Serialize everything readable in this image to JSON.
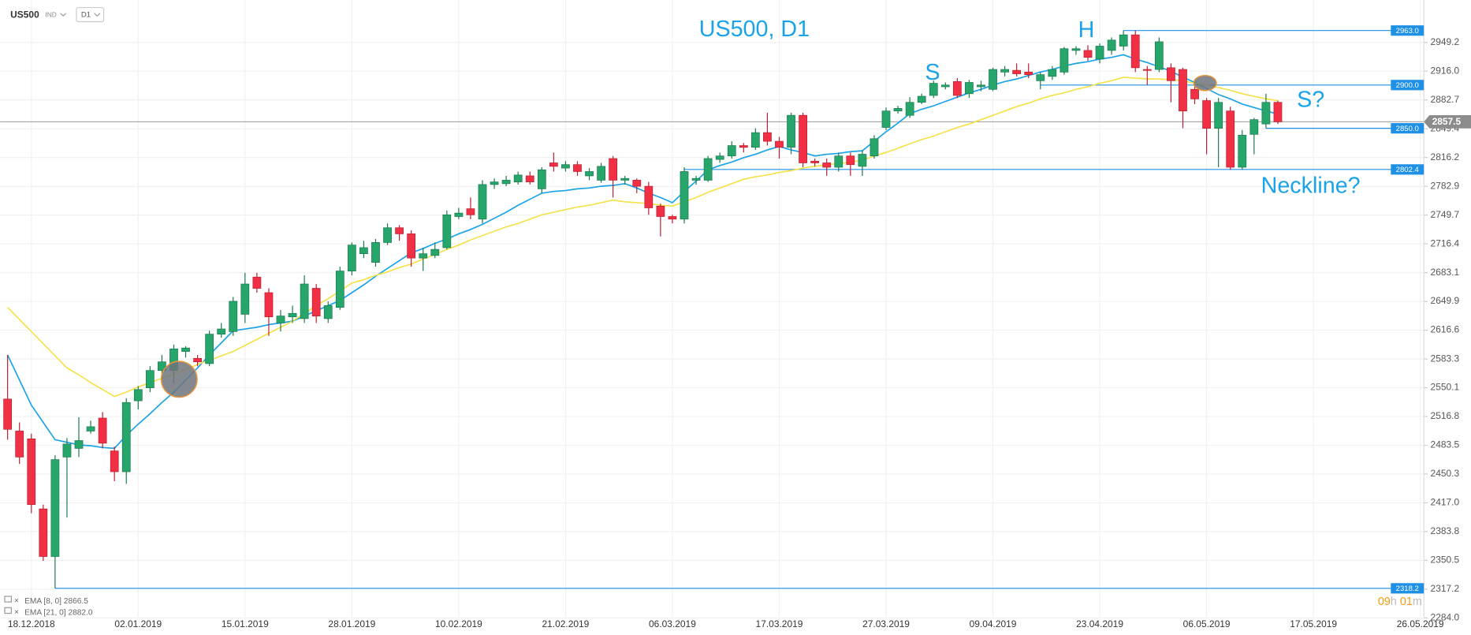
{
  "toolbar": {
    "symbol": "US500",
    "kind": "IND",
    "interval": "D1"
  },
  "chart_data": {
    "type": "candlestick",
    "title": "US500, D1",
    "annotations": [
      "H",
      "S",
      "S?",
      "Neckline?"
    ],
    "up_color": "#26a66b",
    "down_color": "#f23045",
    "open": [
      2537,
      2500,
      2491,
      2410,
      2355,
      2470,
      2480,
      2500,
      2515,
      2477,
      2453,
      2535,
      2550,
      2570,
      2570,
      2592,
      2584,
      2578,
      2612,
      2615,
      2635,
      2678,
      2660,
      2625,
      2632,
      2630,
      2665,
      2630,
      2643,
      2685,
      2705,
      2695,
      2718,
      2735,
      2728,
      2700,
      2703,
      2712,
      2748,
      2757,
      2745,
      2785,
      2786,
      2788,
      2795,
      2780,
      2810,
      2804,
      2808,
      2795,
      2790,
      2815,
      2790,
      2790,
      2783,
      2760,
      2748,
      2745,
      2790,
      2790,
      2814,
      2818,
      2830,
      2828,
      2845,
      2835,
      2828,
      2865,
      2812,
      2810,
      2805,
      2818,
      2806,
      2818,
      2851,
      2870,
      2865,
      2880,
      2888,
      2898,
      2904,
      2890,
      2898,
      2895,
      2915,
      2917,
      2915,
      2905,
      2910,
      2915,
      2940,
      2940,
      2930,
      2940,
      2945,
      2958,
      2918,
      2918,
      2920,
      2918,
      2895,
      2882,
      2850,
      2870,
      2805,
      2843,
      2855,
      2880
    ],
    "high": [
      2588,
      2510,
      2497,
      2415,
      2472,
      2492,
      2516,
      2512,
      2522,
      2482,
      2538,
      2552,
      2575,
      2588,
      2600,
      2598,
      2588,
      2616,
      2625,
      2655,
      2683,
      2683,
      2665,
      2640,
      2645,
      2680,
      2670,
      2650,
      2690,
      2718,
      2720,
      2722,
      2740,
      2738,
      2732,
      2712,
      2718,
      2755,
      2758,
      2770,
      2790,
      2792,
      2795,
      2800,
      2800,
      2805,
      2822,
      2812,
      2812,
      2804,
      2810,
      2818,
      2795,
      2792,
      2788,
      2763,
      2750,
      2805,
      2795,
      2818,
      2822,
      2835,
      2833,
      2850,
      2868,
      2840,
      2868,
      2868,
      2815,
      2815,
      2822,
      2822,
      2825,
      2842,
      2874,
      2876,
      2886,
      2890,
      2905,
      2903,
      2908,
      2906,
      2905,
      2920,
      2922,
      2925,
      2925,
      2915,
      2922,
      2944,
      2945,
      2946,
      2948,
      2955,
      2963,
      2963,
      2922,
      2955,
      2925,
      2920,
      2900,
      2885,
      2885,
      2875,
      2848,
      2862,
      2890,
      2882
    ],
    "low": [
      2490,
      2462,
      2405,
      2350,
      2318,
      2400,
      2470,
      2497,
      2480,
      2442,
      2439,
      2525,
      2545,
      2560,
      2555,
      2585,
      2575,
      2575,
      2608,
      2610,
      2625,
      2660,
      2610,
      2615,
      2625,
      2625,
      2625,
      2625,
      2640,
      2680,
      2700,
      2690,
      2715,
      2720,
      2690,
      2685,
      2700,
      2710,
      2745,
      2745,
      2740,
      2780,
      2783,
      2785,
      2785,
      2775,
      2800,
      2800,
      2795,
      2790,
      2787,
      2770,
      2785,
      2775,
      2750,
      2725,
      2740,
      2740,
      2785,
      2788,
      2810,
      2815,
      2822,
      2825,
      2830,
      2815,
      2820,
      2805,
      2806,
      2795,
      2800,
      2795,
      2795,
      2815,
      2848,
      2867,
      2862,
      2878,
      2885,
      2895,
      2885,
      2885,
      2893,
      2893,
      2910,
      2910,
      2908,
      2895,
      2906,
      2912,
      2935,
      2928,
      2925,
      2935,
      2940,
      2915,
      2900,
      2915,
      2880,
      2850,
      2878,
      2820,
      2805,
      2802,
      2802,
      2820,
      2850,
      2855
    ],
    "close": [
      2502,
      2470,
      2415,
      2355,
      2467,
      2485,
      2489,
      2505,
      2486,
      2453,
      2533,
      2548,
      2570,
      2580,
      2595,
      2596,
      2580,
      2612,
      2618,
      2650,
      2670,
      2665,
      2632,
      2633,
      2636,
      2670,
      2633,
      2645,
      2685,
      2715,
      2712,
      2718,
      2735,
      2728,
      2700,
      2705,
      2710,
      2750,
      2752,
      2750,
      2785,
      2788,
      2790,
      2796,
      2788,
      2802,
      2806,
      2808,
      2800,
      2800,
      2806,
      2790,
      2792,
      2783,
      2758,
      2748,
      2745,
      2800,
      2792,
      2815,
      2818,
      2830,
      2828,
      2845,
      2835,
      2828,
      2865,
      2810,
      2810,
      2805,
      2818,
      2808,
      2820,
      2838,
      2870,
      2873,
      2880,
      2887,
      2902,
      2900,
      2888,
      2903,
      2900,
      2918,
      2918,
      2913,
      2912,
      2912,
      2918,
      2942,
      2942,
      2932,
      2945,
      2952,
      2958,
      2920,
      2917,
      2950,
      2905,
      2870,
      2884,
      2850,
      2880,
      2805,
      2842,
      2860,
      2880,
      2857.5
    ],
    "series": [
      {
        "name": "EMA [8, 0]",
        "legend_value": "2866.5",
        "type": "line",
        "color": "#1aa3e8",
        "values": [
          2588,
          2559,
          2530,
          2510,
          2490,
          2487,
          2484,
          2483,
          2481,
          2480,
          2495,
          2508,
          2520,
          2533,
          2545,
          2559,
          2573,
          2588,
          2602,
          2616,
          2618,
          2620,
          2623,
          2625,
          2627,
          2633,
          2639,
          2645,
          2651,
          2660,
          2669,
          2679,
          2688,
          2697,
          2706,
          2711,
          2717,
          2722,
          2728,
          2733,
          2739,
          2746,
          2753,
          2761,
          2768,
          2775,
          2777,
          2778,
          2780,
          2781,
          2783,
          2784,
          2786,
          2781,
          2775,
          2770,
          2764,
          2777,
          2789,
          2802,
          2807,
          2811,
          2816,
          2820,
          2825,
          2829,
          2825,
          2822,
          2818,
          2820,
          2821,
          2823,
          2824,
          2835,
          2846,
          2856,
          2867,
          2872,
          2876,
          2881,
          2886,
          2891,
          2895,
          2900,
          2904,
          2907,
          2911,
          2915,
          2918,
          2922,
          2925,
          2927,
          2930,
          2932,
          2935,
          2930,
          2926,
          2921,
          2916,
          2909,
          2903,
          2896,
          2889,
          2884,
          2878,
          2874,
          2870,
          2866.5
        ]
      },
      {
        "name": "EMA [21, 0]",
        "legend_value": "2882.0",
        "type": "line",
        "color": "#f5e14c",
        "values": [
          2643,
          2629,
          2615,
          2601,
          2587,
          2573,
          2565,
          2556,
          2548,
          2540,
          2545,
          2551,
          2556,
          2561,
          2566,
          2571,
          2577,
          2582,
          2587,
          2592,
          2599,
          2606,
          2613,
          2620,
          2627,
          2636,
          2645,
          2653,
          2662,
          2671,
          2675,
          2680,
          2684,
          2689,
          2693,
          2699,
          2704,
          2710,
          2715,
          2721,
          2726,
          2731,
          2736,
          2740,
          2745,
          2750,
          2753,
          2756,
          2759,
          2761,
          2764,
          2767,
          2765,
          2764,
          2763,
          2761,
          2760,
          2765,
          2770,
          2776,
          2781,
          2786,
          2791,
          2794,
          2796,
          2799,
          2801,
          2804,
          2806,
          2808,
          2809,
          2811,
          2813,
          2818,
          2822,
          2827,
          2832,
          2837,
          2841,
          2846,
          2851,
          2855,
          2860,
          2865,
          2870,
          2875,
          2879,
          2884,
          2888,
          2891,
          2895,
          2898,
          2902,
          2905,
          2909,
          2908,
          2907,
          2907,
          2906,
          2905,
          2902,
          2900,
          2897,
          2894,
          2890,
          2887,
          2884,
          2882
        ]
      }
    ],
    "levels": [
      {
        "value": 2963,
        "label": "2963.0",
        "from": 94
      },
      {
        "value": 2900,
        "label": "2900.0",
        "from": 87
      },
      {
        "value": 2850,
        "label": "2850.0",
        "from": 106
      },
      {
        "value": 2802.4,
        "label": "2802.4",
        "from": 57
      },
      {
        "value": 2318.2,
        "label": "2318.2",
        "from": 4
      }
    ],
    "level_color": "#1e90e6",
    "last_price": 2857.5,
    "xlim": [
      -0.64,
      119.3
    ],
    "xticks": [
      {
        "value": 2,
        "label": "18.12.2018"
      },
      {
        "value": 11,
        "label": "02.01.2019"
      },
      {
        "value": 20,
        "label": "15.01.2019"
      },
      {
        "value": 29,
        "label": "28.01.2019"
      },
      {
        "value": 38,
        "label": "10.02.2019"
      },
      {
        "value": 47,
        "label": "21.02.2019"
      },
      {
        "value": 56,
        "label": "06.03.2019"
      },
      {
        "value": 65,
        "label": "17.03.2019"
      },
      {
        "value": 74,
        "label": "27.03.2019"
      },
      {
        "value": 83,
        "label": "09.04.2019"
      },
      {
        "value": 92,
        "label": "23.04.2019"
      },
      {
        "value": 101,
        "label": "06.05.2019"
      },
      {
        "value": 110,
        "label": "17.05.2019"
      },
      {
        "value": 119,
        "label": "26.05.2019"
      }
    ],
    "ylim": [
      2269.7,
      2998.3
    ],
    "yticks": [
      {
        "value": 2284,
        "label": "2284.0"
      },
      2317.2,
      2350.5,
      2383.8,
      {
        "value": 2417,
        "label": "2417.0"
      },
      2450.3,
      2483.5,
      2516.8,
      2550.1,
      2583.3,
      2616.6,
      2649.9,
      2683.1,
      2716.4,
      2749.7,
      2782.9,
      2816.2,
      2849.4,
      2882.7,
      {
        "value": 2916,
        "label": "2916.0"
      },
      2949.2
    ],
    "grid": true,
    "countdown": [
      "09",
      "h",
      "01",
      "m"
    ]
  }
}
